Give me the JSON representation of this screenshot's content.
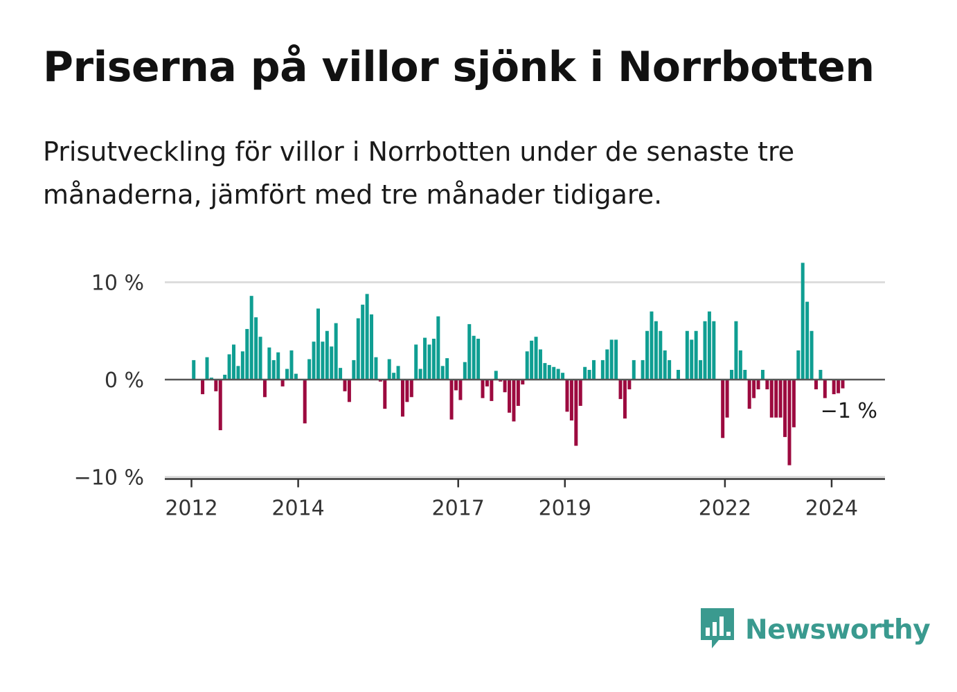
{
  "header": {
    "title": "Priserna på villor sjönk i Norrbotten",
    "subtitle": "Prisutveckling för villor i Norrbotten under de senaste tre månaderna, jämfört med tre månader tidigare."
  },
  "brand": {
    "name": "Newsworthy",
    "icon": "newsworthy-logo-icon",
    "color": "#3a9a8f"
  },
  "colors": {
    "positive": "#0f9e92",
    "negative": "#9c0a3f",
    "zero_line": "#555555",
    "grid": "#dddddd"
  },
  "chart_data": {
    "type": "bar",
    "title": "Priserna på villor sjönk i Norrbotten",
    "ylabel": "",
    "xlabel": "",
    "ylim": [
      -10,
      12
    ],
    "y_ticks": [
      {
        "value": 10,
        "label": "10 %"
      },
      {
        "value": 0,
        "label": "0 %"
      },
      {
        "value": -10,
        "label": "−10 %"
      }
    ],
    "x_start": 2011.5,
    "x_end": 2025.0,
    "x_ticks": [
      {
        "value": 2012,
        "label": "2012"
      },
      {
        "value": 2014,
        "label": "2014"
      },
      {
        "value": 2017,
        "label": "2017"
      },
      {
        "value": 2019,
        "label": "2019"
      },
      {
        "value": 2022,
        "label": "2022"
      },
      {
        "value": 2024,
        "label": "2024"
      }
    ],
    "first_month": 2012.0,
    "months_per_year": 12,
    "values": [
      2.0,
      0,
      -1.5,
      2.3,
      0.2,
      -1.2,
      -5.2,
      0.5,
      2.6,
      3.6,
      1.4,
      2.9,
      5.2,
      8.6,
      6.4,
      4.4,
      -1.8,
      3.3,
      2.0,
      2.8,
      -0.7,
      1.1,
      3.0,
      0.6,
      0,
      -4.5,
      2.1,
      3.9,
      7.3,
      3.9,
      5.0,
      3.4,
      5.8,
      1.2,
      -1.2,
      -2.3,
      2.0,
      6.3,
      7.7,
      8.8,
      6.7,
      2.3,
      -0.2,
      -3.0,
      2.1,
      0.7,
      1.4,
      -3.8,
      -2.3,
      -1.8,
      3.6,
      1.1,
      4.3,
      3.6,
      4.2,
      6.5,
      1.4,
      2.2,
      -4.1,
      -1.1,
      -2.1,
      1.8,
      5.7,
      4.5,
      4.2,
      -1.9,
      -0.7,
      -2.2,
      0.9,
      -0.2,
      -1.3,
      -3.4,
      -4.3,
      -2.7,
      -0.5,
      2.9,
      4.0,
      4.4,
      3.1,
      1.7,
      1.5,
      1.3,
      1.1,
      0.7,
      -3.3,
      -4.2,
      -6.8,
      -2.7,
      1.3,
      1.0,
      2.0,
      0,
      2.0,
      3.1,
      4.1,
      4.1,
      -2.0,
      -4.0,
      -1.0,
      2.0,
      0,
      2.0,
      5.0,
      7.0,
      6.0,
      5.0,
      3.0,
      2.0,
      0,
      1.0,
      0,
      5.0,
      4.1,
      5.0,
      2.0,
      6.0,
      7.0,
      6.0,
      0,
      -6.0,
      -3.9,
      1.0,
      6.0,
      3.0,
      1.0,
      -3.0,
      -1.9,
      -1.0,
      1.0,
      -1.0,
      -3.9,
      -3.9,
      -3.9,
      -5.9,
      -8.8,
      -4.9,
      3.0,
      12.0,
      8.0,
      5.0,
      -1.0,
      1.0,
      -1.9,
      0,
      -1.5,
      -1.4,
      -0.9
    ],
    "annotations": [
      {
        "text": "−1 %",
        "at": "last-bar"
      }
    ]
  }
}
